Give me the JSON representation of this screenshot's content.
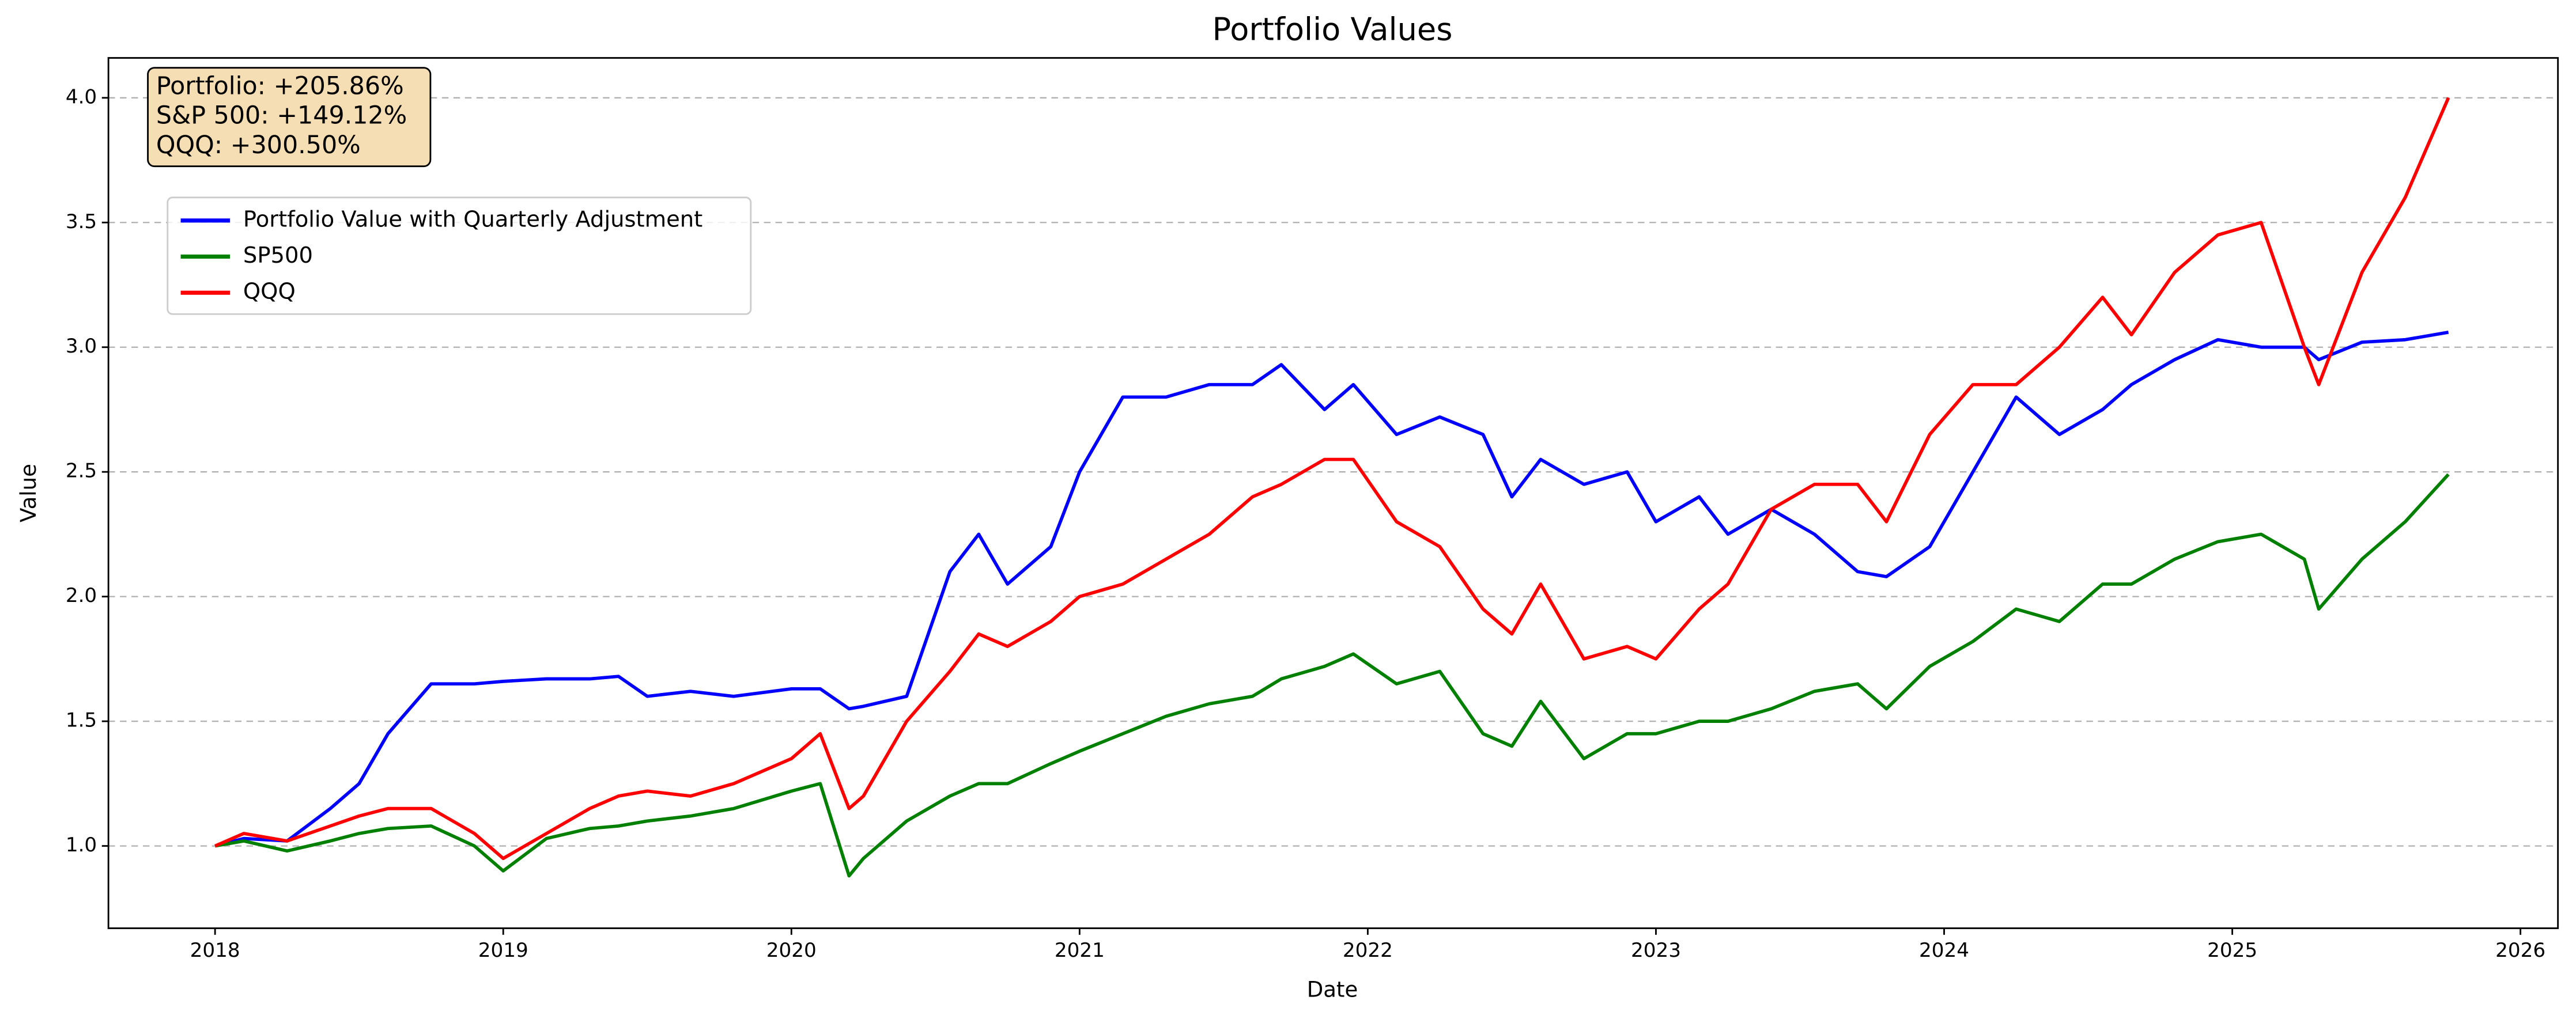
{
  "chart_data": {
    "type": "line",
    "title": "Portfolio Values",
    "x_label": "Date",
    "y_label": "Value",
    "annotations": [
      "Portfolio: +205.86%",
      "S&P 500: +149.12%",
      "QQQ: +300.50%"
    ],
    "legend": "upper left",
    "grid": true,
    "xlim": [
      2017.63,
      2026.13
    ],
    "ylim": [
      0.67,
      4.16
    ],
    "xticks": [
      2018,
      2019,
      2020,
      2021,
      2022,
      2023,
      2024,
      2025,
      2026
    ],
    "yticks": [
      {
        "value": 1,
        "label": "1.0"
      },
      {
        "value": 1.5,
        "label": "1.5"
      },
      {
        "value": 2,
        "label": "2.0"
      },
      {
        "value": 2.5,
        "label": "2.5"
      },
      {
        "value": 3,
        "label": "3.0"
      },
      {
        "value": 3.5,
        "label": "3.5"
      },
      {
        "value": 4,
        "label": "4.0"
      }
    ],
    "x": [
      2018.0,
      2018.1,
      2018.25,
      2018.4,
      2018.5,
      2018.6,
      2018.75,
      2018.9,
      2019.0,
      2019.15,
      2019.3,
      2019.4,
      2019.5,
      2019.65,
      2019.8,
      2020.0,
      2020.1,
      2020.2,
      2020.25,
      2020.4,
      2020.55,
      2020.65,
      2020.75,
      2020.9,
      2021.0,
      2021.15,
      2021.3,
      2021.45,
      2021.6,
      2021.7,
      2021.85,
      2021.95,
      2022.1,
      2022.25,
      2022.4,
      2022.5,
      2022.6,
      2022.75,
      2022.9,
      2023.0,
      2023.15,
      2023.25,
      2023.4,
      2023.55,
      2023.7,
      2023.8,
      2023.95,
      2024.1,
      2024.25,
      2024.4,
      2024.55,
      2024.65,
      2024.8,
      2024.95,
      2025.1,
      2025.25,
      2025.3,
      2025.45,
      2025.6,
      2025.75
    ],
    "series": [
      {
        "name": "Portfolio Value with Quarterly Adjustment",
        "color": "#0000ff",
        "values": [
          1.0,
          1.03,
          1.02,
          1.15,
          1.25,
          1.45,
          1.65,
          1.65,
          1.66,
          1.67,
          1.67,
          1.68,
          1.6,
          1.62,
          1.6,
          1.63,
          1.63,
          1.55,
          1.56,
          1.6,
          2.1,
          2.25,
          2.05,
          2.2,
          2.5,
          2.8,
          2.8,
          2.85,
          2.85,
          2.93,
          2.75,
          2.85,
          2.65,
          2.72,
          2.65,
          2.4,
          2.55,
          2.45,
          2.5,
          2.3,
          2.4,
          2.25,
          2.35,
          2.25,
          2.1,
          2.08,
          2.2,
          2.5,
          2.8,
          2.65,
          2.75,
          2.85,
          2.95,
          3.03,
          3.0,
          3.0,
          2.95,
          3.02,
          3.03,
          3.06
        ]
      },
      {
        "name": "SP500",
        "color": "#008000",
        "values": [
          1.0,
          1.02,
          0.98,
          1.02,
          1.05,
          1.07,
          1.08,
          1.0,
          0.9,
          1.03,
          1.07,
          1.08,
          1.1,
          1.12,
          1.15,
          1.22,
          1.25,
          0.88,
          0.95,
          1.1,
          1.2,
          1.25,
          1.25,
          1.33,
          1.38,
          1.45,
          1.52,
          1.57,
          1.6,
          1.67,
          1.72,
          1.77,
          1.65,
          1.7,
          1.45,
          1.4,
          1.58,
          1.35,
          1.45,
          1.45,
          1.5,
          1.5,
          1.55,
          1.62,
          1.65,
          1.55,
          1.72,
          1.82,
          1.95,
          1.9,
          2.05,
          2.05,
          2.15,
          2.22,
          2.25,
          2.15,
          1.95,
          2.15,
          2.3,
          2.49
        ]
      },
      {
        "name": "QQQ",
        "color": "#ff0000",
        "values": [
          1.0,
          1.05,
          1.02,
          1.08,
          1.12,
          1.15,
          1.15,
          1.05,
          0.95,
          1.05,
          1.15,
          1.2,
          1.22,
          1.2,
          1.25,
          1.35,
          1.45,
          1.15,
          1.2,
          1.5,
          1.7,
          1.85,
          1.8,
          1.9,
          2.0,
          2.05,
          2.15,
          2.25,
          2.4,
          2.45,
          2.55,
          2.55,
          2.3,
          2.2,
          1.95,
          1.85,
          2.05,
          1.75,
          1.8,
          1.75,
          1.95,
          2.05,
          2.35,
          2.45,
          2.45,
          2.3,
          2.65,
          2.85,
          2.85,
          3.0,
          3.2,
          3.05,
          3.3,
          3.45,
          3.5,
          3.0,
          2.85,
          3.3,
          3.6,
          4.0
        ]
      }
    ]
  }
}
